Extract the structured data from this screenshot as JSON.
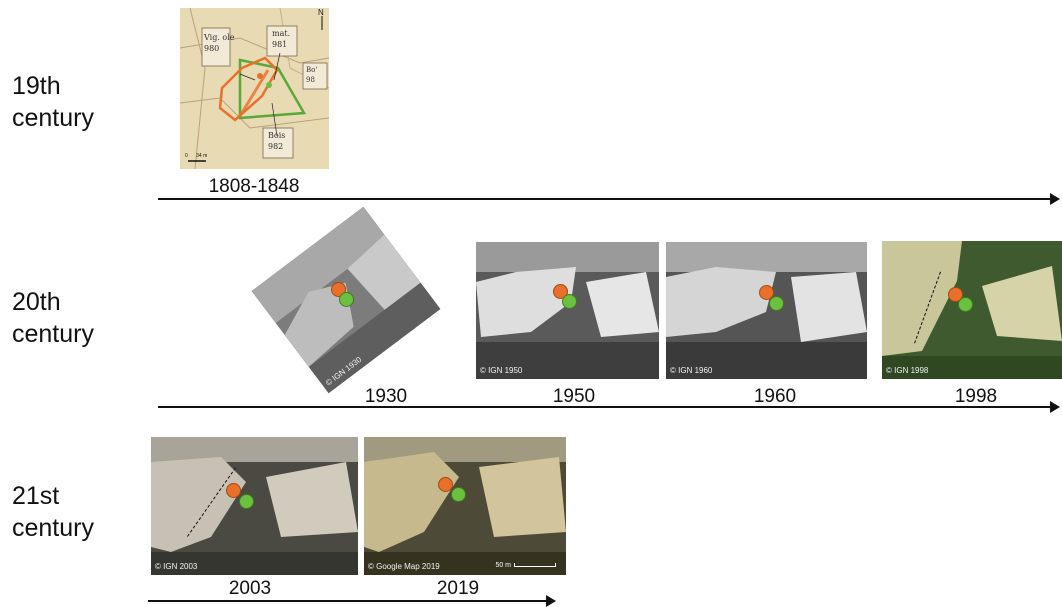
{
  "rows": [
    {
      "century": "19th\ncentury"
    },
    {
      "century": "20th\ncentury"
    },
    {
      "century": "21st\ncentury"
    }
  ],
  "cadastre": {
    "year": "1808-1848",
    "parcels": [
      {
        "label": "Vig. ole\n980"
      },
      {
        "label": "mat.\n981"
      },
      {
        "label": "Bois\n982"
      },
      {
        "label": "Bo'\n98"
      }
    ],
    "north": "N",
    "scale": "0      34 m"
  },
  "photos": [
    {
      "year": "1930",
      "credit": "© IGN 1930"
    },
    {
      "year": "1950",
      "credit": "© IGN 1950"
    },
    {
      "year": "1960",
      "credit": "© IGN 1960"
    },
    {
      "year": "1998",
      "credit": "© IGN 1998"
    },
    {
      "year": "2003",
      "credit": "© IGN 2003"
    },
    {
      "year": "2019",
      "credit": "© Google Map 2019",
      "scale": "50 m"
    }
  ],
  "colors": {
    "orange_marker": "#e8702a",
    "green_marker": "#6cc040",
    "axis": "#111111"
  }
}
